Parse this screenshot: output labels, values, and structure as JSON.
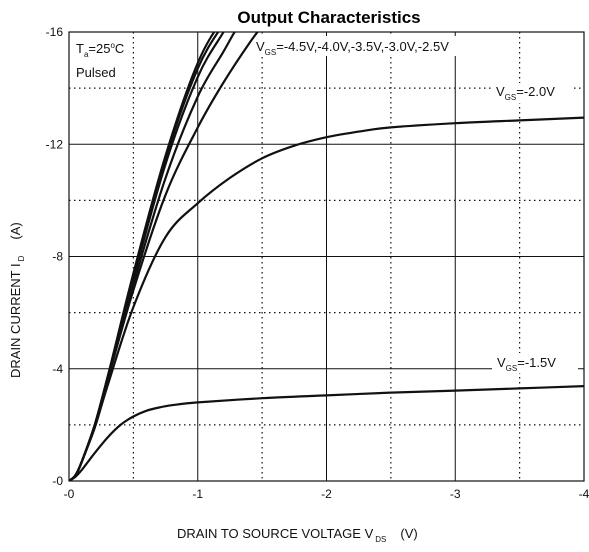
{
  "chart_data": {
    "type": "line",
    "title": "Output Characteristics",
    "xlabel": {
      "main": "DRAIN TO SOURCE VOLTAGE   V",
      "sub": "DS",
      "unit": "(V)"
    },
    "ylabel": {
      "main": "DRAIN CURRENT   I",
      "sub": "D",
      "unit": "(A)"
    },
    "xlim": [
      0,
      -4
    ],
    "ylim": [
      0,
      -16
    ],
    "x_ticks": [
      0,
      -1,
      -2,
      -3,
      -4
    ],
    "x_tick_labels": [
      "-0",
      "-1",
      "-2",
      "-3",
      "-4"
    ],
    "y_ticks": [
      0,
      -4,
      -8,
      -12,
      -16
    ],
    "y_tick_labels": [
      "-0",
      "-4",
      "-8",
      "-12",
      "-16"
    ],
    "grid": true,
    "conditions": {
      "temp_prefix": "T",
      "temp_sub": "a",
      "temp_value": "=25",
      "temp_sup": "o",
      "temp_unit": "C",
      "mode": "Pulsed"
    },
    "annotations": [
      {
        "prefix": "V",
        "sub": "GS",
        "text": "=-4.5V,-4.0V,-3.5V,-3.0V,-2.5V"
      },
      {
        "prefix": "V",
        "sub": "GS",
        "text": "=-2.0V"
      },
      {
        "prefix": "V",
        "sub": "GS",
        "text": "=-1.5V"
      }
    ],
    "series": [
      {
        "vgs": "-4.5V",
        "x": [
          0,
          -0.05,
          -0.1,
          -0.2,
          -0.3,
          -0.5,
          -0.75,
          -1.0,
          -1.2,
          -1.3
        ],
        "y": [
          0,
          -0.2,
          -0.7,
          -2.0,
          -3.7,
          -7.4,
          -11.6,
          -14.9,
          -16.5,
          -17.0
        ]
      },
      {
        "vgs": "-4.0V",
        "x": [
          0,
          -0.05,
          -0.1,
          -0.2,
          -0.3,
          -0.5,
          -0.75,
          -1.0,
          -1.2,
          -1.3
        ],
        "y": [
          0,
          -0.2,
          -0.7,
          -2.0,
          -3.7,
          -7.3,
          -11.5,
          -14.7,
          -16.3,
          -17.0
        ]
      },
      {
        "vgs": "-3.5V",
        "x": [
          0,
          -0.05,
          -0.1,
          -0.2,
          -0.3,
          -0.5,
          -0.75,
          -1.0,
          -1.2,
          -1.3
        ],
        "y": [
          0,
          -0.2,
          -0.7,
          -2.0,
          -3.7,
          -7.2,
          -11.3,
          -14.4,
          -16.0,
          -16.8
        ]
      },
      {
        "vgs": "-3.0V",
        "x": [
          0,
          -0.05,
          -0.1,
          -0.2,
          -0.3,
          -0.5,
          -0.75,
          -1.0,
          -1.2,
          -1.3,
          -1.4
        ],
        "y": [
          0,
          -0.2,
          -0.7,
          -2.0,
          -3.6,
          -7.0,
          -10.8,
          -13.7,
          -15.3,
          -16.1,
          -16.7
        ]
      },
      {
        "vgs": "-2.5V",
        "x": [
          0,
          -0.05,
          -0.1,
          -0.2,
          -0.3,
          -0.5,
          -0.75,
          -1.0,
          -1.2,
          -1.4,
          -1.5,
          -1.6
        ],
        "y": [
          0,
          -0.2,
          -0.7,
          -2.0,
          -3.6,
          -6.8,
          -10.2,
          -12.6,
          -14.2,
          -15.6,
          -16.2,
          -16.7
        ]
      },
      {
        "vgs": "-2.0V",
        "x": [
          0,
          -0.05,
          -0.1,
          -0.2,
          -0.3,
          -0.5,
          -0.75,
          -1.0,
          -1.25,
          -1.5,
          -1.75,
          -2.0,
          -2.25,
          -2.5,
          -3.0,
          -3.5,
          -4.0
        ],
        "y": [
          0,
          -0.2,
          -0.7,
          -1.9,
          -3.4,
          -6.2,
          -8.7,
          -9.9,
          -10.8,
          -11.5,
          -11.95,
          -12.25,
          -12.45,
          -12.6,
          -12.75,
          -12.85,
          -12.95
        ]
      },
      {
        "vgs": "-1.5V",
        "x": [
          0,
          -0.05,
          -0.1,
          -0.15,
          -0.2,
          -0.3,
          -0.4,
          -0.5,
          -0.6,
          -0.7,
          -0.8,
          -1.0,
          -1.5,
          -2.0,
          -2.5,
          -3.0,
          -3.5,
          -4.0
        ],
        "y": [
          0,
          -0.15,
          -0.4,
          -0.7,
          -1.0,
          -1.55,
          -2.0,
          -2.3,
          -2.5,
          -2.62,
          -2.7,
          -2.8,
          -2.95,
          -3.05,
          -3.15,
          -3.22,
          -3.3,
          -3.38
        ]
      }
    ]
  }
}
